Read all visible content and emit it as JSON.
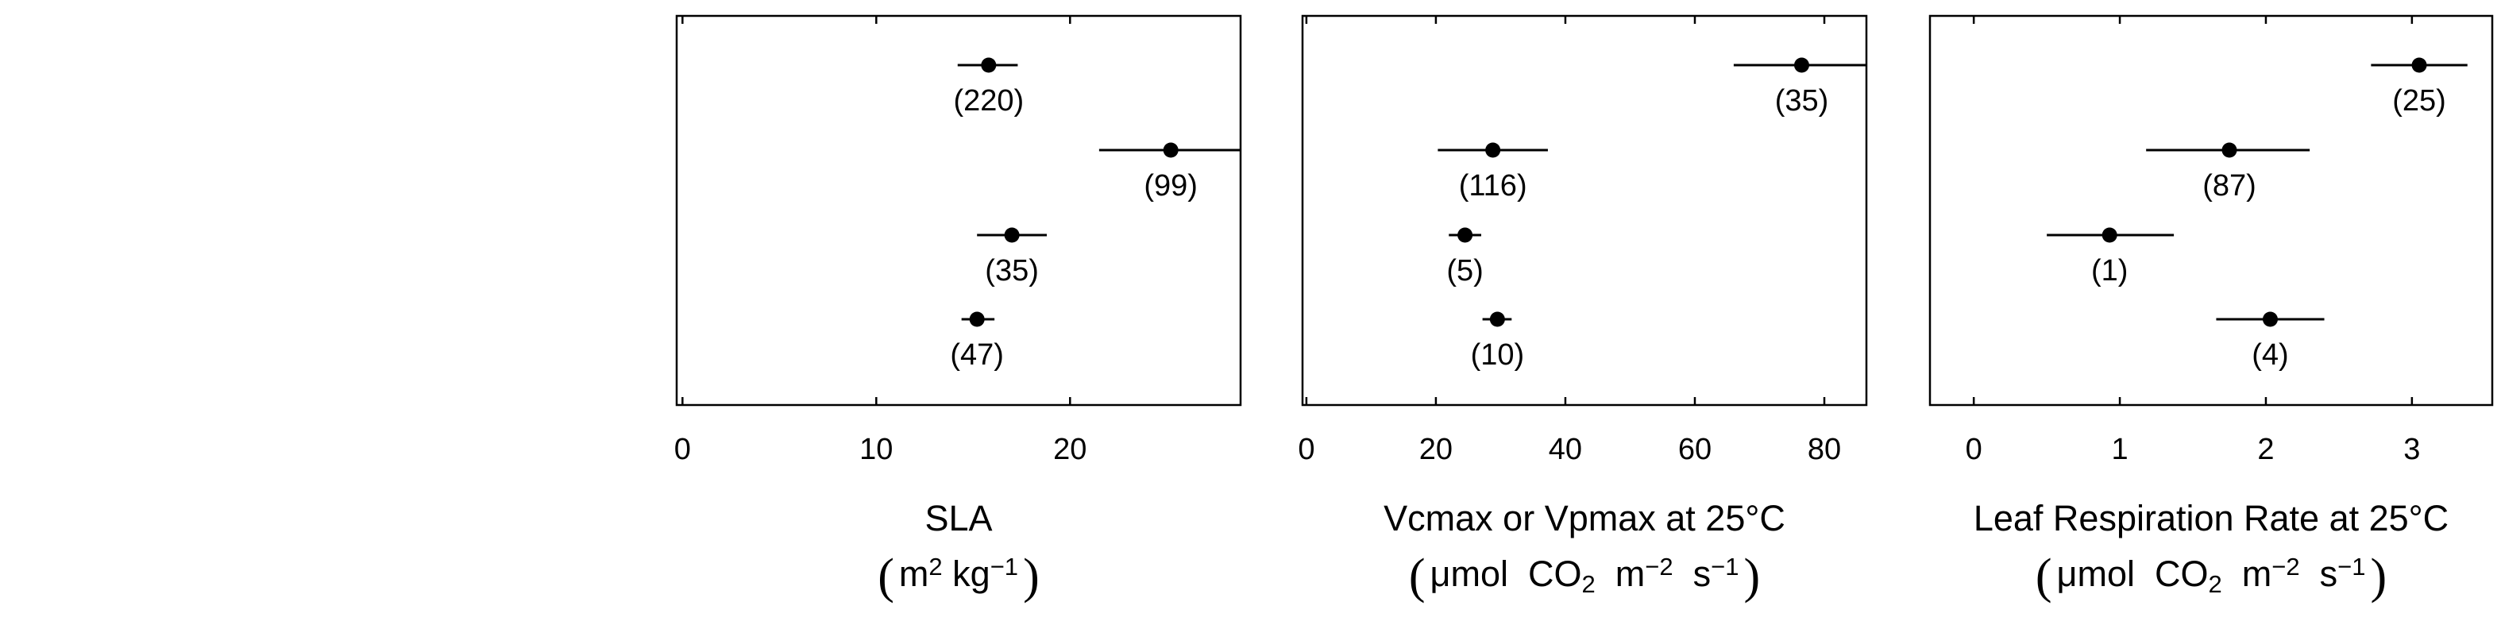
{
  "chart_data": [
    {
      "type": "scatter",
      "xlabel": "SLA",
      "unit_parts": [
        {
          "t": "m"
        },
        {
          "t": "2",
          "sup": true
        },
        {
          "t": " kg"
        },
        {
          "t": "−1",
          "sup": true
        }
      ],
      "xlim": [
        -0.3,
        28.8
      ],
      "xticks": [
        0,
        10,
        20
      ],
      "points": [
        {
          "x": 15.8,
          "lo": 14.2,
          "hi": 17.3,
          "n": "(220)"
        },
        {
          "x": 25.2,
          "lo": 21.5,
          "hi": 28.8,
          "n": "(99)"
        },
        {
          "x": 17.0,
          "lo": 15.2,
          "hi": 18.8,
          "n": "(35)"
        },
        {
          "x": 15.2,
          "lo": 14.4,
          "hi": 16.1,
          "n": "(47)"
        }
      ]
    },
    {
      "type": "scatter",
      "xlabel": "Vcmax or Vpmax at 25°C",
      "unit_parts": [
        {
          "t": "μmol  CO"
        },
        {
          "t": "2",
          "sub": true
        },
        {
          "t": "  m"
        },
        {
          "t": "−2",
          "sup": true
        },
        {
          "t": "  s"
        },
        {
          "t": "−1",
          "sup": true
        }
      ],
      "xlim": [
        -0.6,
        86.5
      ],
      "xticks": [
        0,
        20,
        40,
        60,
        80
      ],
      "points": [
        {
          "x": 76.5,
          "lo": 66.0,
          "hi": 86.5,
          "n": "(35)"
        },
        {
          "x": 28.8,
          "lo": 20.3,
          "hi": 37.3,
          "n": "(116)"
        },
        {
          "x": 24.5,
          "lo": 22.0,
          "hi": 27.0,
          "n": "(5)"
        },
        {
          "x": 29.5,
          "lo": 27.2,
          "hi": 31.7,
          "n": "(10)"
        }
      ]
    },
    {
      "type": "scatter",
      "xlabel": "Leaf Respiration Rate at 25°C",
      "unit_parts": [
        {
          "t": "μmol  CO"
        },
        {
          "t": "2",
          "sub": true
        },
        {
          "t": "  m"
        },
        {
          "t": "−2",
          "sup": true
        },
        {
          "t": "  s"
        },
        {
          "t": "−1",
          "sup": true
        }
      ],
      "xlim": [
        -0.3,
        3.55
      ],
      "xticks": [
        0,
        1,
        2,
        3
      ],
      "points": [
        {
          "x": 3.05,
          "lo": 2.72,
          "hi": 3.38,
          "n": "(25)"
        },
        {
          "x": 1.75,
          "lo": 1.18,
          "hi": 2.3,
          "n": "(87)"
        },
        {
          "x": 0.93,
          "lo": 0.5,
          "hi": 1.37,
          "n": "(1)"
        },
        {
          "x": 2.03,
          "lo": 1.66,
          "hi": 2.4,
          "n": "(4)"
        }
      ]
    }
  ]
}
